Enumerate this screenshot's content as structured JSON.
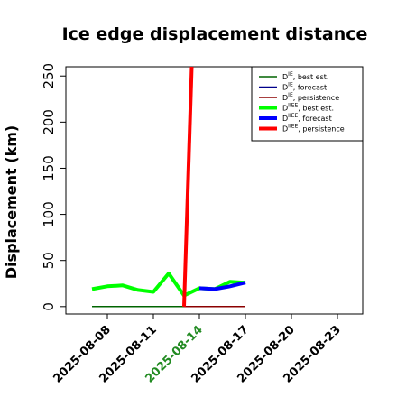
{
  "chart_data": {
    "type": "line",
    "title": "Ice edge displacement distance",
    "xlabel": "",
    "ylabel": "Displacement (km)",
    "x_ticks": [
      "2025-08-08",
      "2025-08-11",
      "2025-08-14",
      "2025-08-17",
      "2025-08-20",
      "2025-08-23"
    ],
    "highlight_tick": "2025-08-14",
    "ylim": [
      -8,
      260
    ],
    "y_ticks": [
      0,
      50,
      100,
      150,
      200,
      250
    ],
    "grid": false,
    "legend_position": "top-right",
    "series": [
      {
        "name": "Dᴵᴱ, best est.",
        "color": "#006400",
        "width": 1.5,
        "points": [
          [
            "2025-08-07",
            0
          ],
          [
            "2025-08-17",
            0
          ]
        ]
      },
      {
        "name": "Dᴵᴱ, forecast",
        "color": "#00008b",
        "width": 1.5,
        "points": [
          [
            "2025-08-13",
            0
          ],
          [
            "2025-08-17",
            0
          ]
        ]
      },
      {
        "name": "Dᴵᴱ, persistence",
        "color": "#8b0000",
        "width": 1.5,
        "points": [
          [
            "2025-08-13",
            0
          ],
          [
            "2025-08-17",
            0
          ]
        ]
      },
      {
        "name": "Dᴵᴵᴱᴱ, best est.",
        "color": "#00ff00",
        "width": 4,
        "points": [
          [
            "2025-08-07",
            19
          ],
          [
            "2025-08-08",
            22
          ],
          [
            "2025-08-09",
            23
          ],
          [
            "2025-08-10",
            18
          ],
          [
            "2025-08-11",
            16
          ],
          [
            "2025-08-12",
            36
          ],
          [
            "2025-08-13",
            12
          ],
          [
            "2025-08-14",
            20
          ],
          [
            "2025-08-15",
            19
          ],
          [
            "2025-08-16",
            27
          ],
          [
            "2025-08-17",
            26
          ]
        ]
      },
      {
        "name": "Dᴵᴵᴱᴱ, forecast",
        "color": "#0000ff",
        "width": 4,
        "points": [
          [
            "2025-08-14",
            20
          ],
          [
            "2025-08-15",
            19
          ],
          [
            "2025-08-16",
            22
          ],
          [
            "2025-08-17",
            26
          ]
        ]
      },
      {
        "name": "Dᴵᴵᴱᴱ, persistence",
        "color": "#ff0000",
        "width": 4,
        "points": [
          [
            "2025-08-13",
            0
          ],
          [
            "2025-08-13.5",
            260
          ]
        ]
      }
    ],
    "legend": [
      {
        "label": "D",
        "sup": "IE",
        "suffix": ", best est.",
        "color": "#006400",
        "width": 1.5
      },
      {
        "label": "D",
        "sup": "IE",
        "suffix": ", forecast",
        "color": "#00008b",
        "width": 1.5
      },
      {
        "label": "D",
        "sup": "IE",
        "suffix": ", persistence",
        "color": "#8b0000",
        "width": 1.5
      },
      {
        "label": "D",
        "sup": "IIEE",
        "suffix": ", best est.",
        "color": "#00ff00",
        "width": 4
      },
      {
        "label": "D",
        "sup": "IIEE",
        "suffix": ", forecast",
        "color": "#0000ff",
        "width": 4
      },
      {
        "label": "D",
        "sup": "IIEE",
        "suffix": ", persistence",
        "color": "#ff0000",
        "width": 4
      }
    ]
  }
}
